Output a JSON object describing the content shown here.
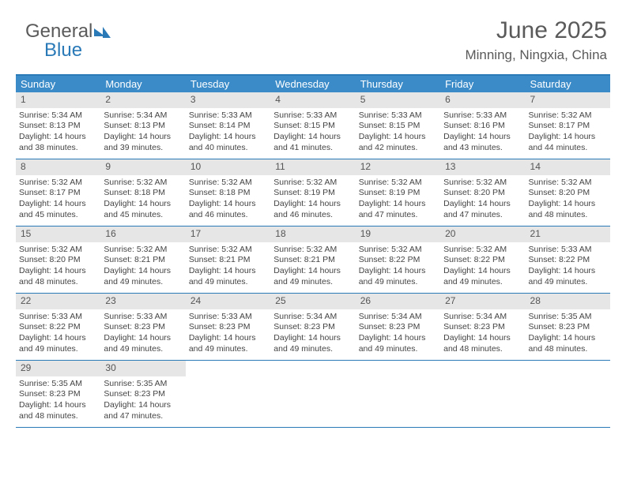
{
  "logo": {
    "line1": "General",
    "line2": "Blue"
  },
  "title": "June 2025",
  "location": "Minning, Ningxia, China",
  "colors": {
    "header_bar": "#3b8bc8",
    "border": "#2a7ab8",
    "daynum_bg": "#e6e6e6",
    "text": "#444444",
    "title_text": "#5a5a5a"
  },
  "day_names": [
    "Sunday",
    "Monday",
    "Tuesday",
    "Wednesday",
    "Thursday",
    "Friday",
    "Saturday"
  ],
  "weeks": [
    [
      {
        "n": "1",
        "sr": "Sunrise: 5:34 AM",
        "ss": "Sunset: 8:13 PM",
        "d1": "Daylight: 14 hours",
        "d2": "and 38 minutes."
      },
      {
        "n": "2",
        "sr": "Sunrise: 5:34 AM",
        "ss": "Sunset: 8:13 PM",
        "d1": "Daylight: 14 hours",
        "d2": "and 39 minutes."
      },
      {
        "n": "3",
        "sr": "Sunrise: 5:33 AM",
        "ss": "Sunset: 8:14 PM",
        "d1": "Daylight: 14 hours",
        "d2": "and 40 minutes."
      },
      {
        "n": "4",
        "sr": "Sunrise: 5:33 AM",
        "ss": "Sunset: 8:15 PM",
        "d1": "Daylight: 14 hours",
        "d2": "and 41 minutes."
      },
      {
        "n": "5",
        "sr": "Sunrise: 5:33 AM",
        "ss": "Sunset: 8:15 PM",
        "d1": "Daylight: 14 hours",
        "d2": "and 42 minutes."
      },
      {
        "n": "6",
        "sr": "Sunrise: 5:33 AM",
        "ss": "Sunset: 8:16 PM",
        "d1": "Daylight: 14 hours",
        "d2": "and 43 minutes."
      },
      {
        "n": "7",
        "sr": "Sunrise: 5:32 AM",
        "ss": "Sunset: 8:17 PM",
        "d1": "Daylight: 14 hours",
        "d2": "and 44 minutes."
      }
    ],
    [
      {
        "n": "8",
        "sr": "Sunrise: 5:32 AM",
        "ss": "Sunset: 8:17 PM",
        "d1": "Daylight: 14 hours",
        "d2": "and 45 minutes."
      },
      {
        "n": "9",
        "sr": "Sunrise: 5:32 AM",
        "ss": "Sunset: 8:18 PM",
        "d1": "Daylight: 14 hours",
        "d2": "and 45 minutes."
      },
      {
        "n": "10",
        "sr": "Sunrise: 5:32 AM",
        "ss": "Sunset: 8:18 PM",
        "d1": "Daylight: 14 hours",
        "d2": "and 46 minutes."
      },
      {
        "n": "11",
        "sr": "Sunrise: 5:32 AM",
        "ss": "Sunset: 8:19 PM",
        "d1": "Daylight: 14 hours",
        "d2": "and 46 minutes."
      },
      {
        "n": "12",
        "sr": "Sunrise: 5:32 AM",
        "ss": "Sunset: 8:19 PM",
        "d1": "Daylight: 14 hours",
        "d2": "and 47 minutes."
      },
      {
        "n": "13",
        "sr": "Sunrise: 5:32 AM",
        "ss": "Sunset: 8:20 PM",
        "d1": "Daylight: 14 hours",
        "d2": "and 47 minutes."
      },
      {
        "n": "14",
        "sr": "Sunrise: 5:32 AM",
        "ss": "Sunset: 8:20 PM",
        "d1": "Daylight: 14 hours",
        "d2": "and 48 minutes."
      }
    ],
    [
      {
        "n": "15",
        "sr": "Sunrise: 5:32 AM",
        "ss": "Sunset: 8:20 PM",
        "d1": "Daylight: 14 hours",
        "d2": "and 48 minutes."
      },
      {
        "n": "16",
        "sr": "Sunrise: 5:32 AM",
        "ss": "Sunset: 8:21 PM",
        "d1": "Daylight: 14 hours",
        "d2": "and 49 minutes."
      },
      {
        "n": "17",
        "sr": "Sunrise: 5:32 AM",
        "ss": "Sunset: 8:21 PM",
        "d1": "Daylight: 14 hours",
        "d2": "and 49 minutes."
      },
      {
        "n": "18",
        "sr": "Sunrise: 5:32 AM",
        "ss": "Sunset: 8:21 PM",
        "d1": "Daylight: 14 hours",
        "d2": "and 49 minutes."
      },
      {
        "n": "19",
        "sr": "Sunrise: 5:32 AM",
        "ss": "Sunset: 8:22 PM",
        "d1": "Daylight: 14 hours",
        "d2": "and 49 minutes."
      },
      {
        "n": "20",
        "sr": "Sunrise: 5:32 AM",
        "ss": "Sunset: 8:22 PM",
        "d1": "Daylight: 14 hours",
        "d2": "and 49 minutes."
      },
      {
        "n": "21",
        "sr": "Sunrise: 5:33 AM",
        "ss": "Sunset: 8:22 PM",
        "d1": "Daylight: 14 hours",
        "d2": "and 49 minutes."
      }
    ],
    [
      {
        "n": "22",
        "sr": "Sunrise: 5:33 AM",
        "ss": "Sunset: 8:22 PM",
        "d1": "Daylight: 14 hours",
        "d2": "and 49 minutes."
      },
      {
        "n": "23",
        "sr": "Sunrise: 5:33 AM",
        "ss": "Sunset: 8:23 PM",
        "d1": "Daylight: 14 hours",
        "d2": "and 49 minutes."
      },
      {
        "n": "24",
        "sr": "Sunrise: 5:33 AM",
        "ss": "Sunset: 8:23 PM",
        "d1": "Daylight: 14 hours",
        "d2": "and 49 minutes."
      },
      {
        "n": "25",
        "sr": "Sunrise: 5:34 AM",
        "ss": "Sunset: 8:23 PM",
        "d1": "Daylight: 14 hours",
        "d2": "and 49 minutes."
      },
      {
        "n": "26",
        "sr": "Sunrise: 5:34 AM",
        "ss": "Sunset: 8:23 PM",
        "d1": "Daylight: 14 hours",
        "d2": "and 49 minutes."
      },
      {
        "n": "27",
        "sr": "Sunrise: 5:34 AM",
        "ss": "Sunset: 8:23 PM",
        "d1": "Daylight: 14 hours",
        "d2": "and 48 minutes."
      },
      {
        "n": "28",
        "sr": "Sunrise: 5:35 AM",
        "ss": "Sunset: 8:23 PM",
        "d1": "Daylight: 14 hours",
        "d2": "and 48 minutes."
      }
    ],
    [
      {
        "n": "29",
        "sr": "Sunrise: 5:35 AM",
        "ss": "Sunset: 8:23 PM",
        "d1": "Daylight: 14 hours",
        "d2": "and 48 minutes."
      },
      {
        "n": "30",
        "sr": "Sunrise: 5:35 AM",
        "ss": "Sunset: 8:23 PM",
        "d1": "Daylight: 14 hours",
        "d2": "and 47 minutes."
      },
      {
        "empty": true
      },
      {
        "empty": true
      },
      {
        "empty": true
      },
      {
        "empty": true
      },
      {
        "empty": true
      }
    ]
  ]
}
